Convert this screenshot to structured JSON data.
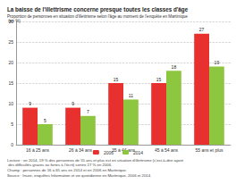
{
  "chart_data": {
    "type": "bar",
    "title": "La baisse de l'illettrisme concerne presque toutes les classes d'âge",
    "subtitle": "Proportion de personnes en situation d'illettrisme selon l'âge au moment de l'enquête en Martinique (en %)",
    "annotations": [
      "Lecture : en 2014, 19 % des personnes de 55 ans et plus est en situation d'illettrisme (c'est-à-dire ayant des difficultés graves ou fortes à l'écrit) contre 27 % en 2006.",
      "Champ : personnes de 16 à 65 ans en 2014 et en 2006 en Martinique.",
      "Source : Insee, enquêtes Information et vie quotidienne en Martinique, 2006 et 2014."
    ],
    "categories": [
      "16 à 25 ans",
      "26 à 34 ans",
      "35 à 44 ans",
      "45 à 54 ans",
      "55 ans et plus"
    ],
    "series": [
      {
        "name": "2006",
        "color": "#e8312f",
        "values": [
          9,
          9,
          15,
          15,
          27
        ]
      },
      {
        "name": "2014",
        "color": "#8dc63f",
        "values": [
          5,
          7,
          11,
          18,
          19
        ]
      }
    ],
    "ylim": [
      0,
      30
    ],
    "yticks": [
      0,
      5,
      10,
      15,
      20,
      25,
      30
    ],
    "grid": true,
    "legend": "bottom",
    "data_labels": true
  }
}
